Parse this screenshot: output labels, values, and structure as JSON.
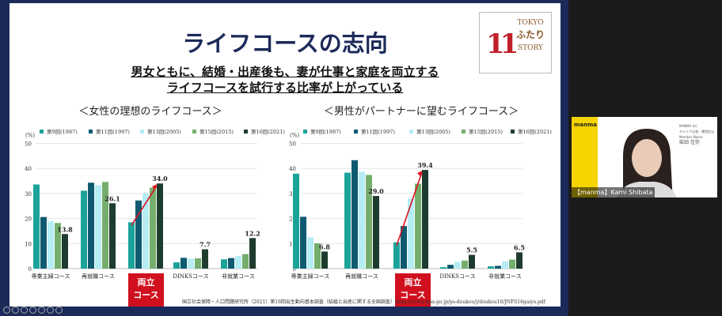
{
  "slide": {
    "title": "ライフコースの志向",
    "subtitle_line1": "男女ともに、結婚・出産後も、妻が仕事と家庭を両立する",
    "subtitle_line2": "ライフコースを試行する比率が上がっている",
    "logo_text": "TOKYO ふたり STORY",
    "highlight_label_line1": "両立",
    "highlight_label_line2": "コース",
    "source": "国立社会保障・人口問題研究所（2021）第16回出生動向基本調査（結婚と出産に関する全国調査）https://www.ipss.go.jp/ps-doukou/j/doukou16/JNFS16gaiyo.pdf"
  },
  "chart_data": [
    {
      "type": "bar",
      "title": "＜女性の理想のライフコース＞",
      "ylabel": "(%)",
      "ylim": [
        0,
        50
      ],
      "yticks": [
        0,
        10,
        20,
        30,
        40,
        50
      ],
      "grid": true,
      "legend": "top",
      "categories": [
        "専業主婦コース",
        "再就職コース",
        "両立コース",
        "DINKSコース",
        "非就業コース"
      ],
      "series": [
        {
          "name": "第9回(1987)",
          "color": "#1ba39a",
          "values": [
            33.6,
            31.1,
            18.5,
            2.5,
            3.7
          ]
        },
        {
          "name": "第11回(1997)",
          "color": "#0e5a70",
          "values": [
            20.6,
            34.3,
            27.2,
            4.3,
            4.2
          ]
        },
        {
          "name": "第13回(2005)",
          "color": "#b6ecf4",
          "values": [
            18.9,
            33.3,
            30.0,
            4.0,
            5.0
          ]
        },
        {
          "name": "第15回(2015)",
          "color": "#74ae6c",
          "values": [
            18.2,
            34.6,
            32.3,
            4.1,
            5.8
          ]
        },
        {
          "name": "第16回(2021)",
          "color": "#1e3c2e",
          "values": [
            13.8,
            26.1,
            34.0,
            7.7,
            12.2
          ]
        }
      ],
      "data_labels": [
        "13.8",
        "26.1",
        "34.0",
        "7.7",
        "12.2"
      ]
    },
    {
      "type": "bar",
      "title": "＜男性がパートナーに望むライフコース＞",
      "ylabel": "(%)",
      "ylim": [
        0,
        50
      ],
      "yticks": [
        0,
        10,
        20,
        30,
        40,
        50
      ],
      "grid": true,
      "legend": "top",
      "categories": [
        "専業主婦コース",
        "再就職コース",
        "両立コース",
        "DINKSコース",
        "非就業コース"
      ],
      "series": [
        {
          "name": "第9回(1987)",
          "color": "#1ba39a",
          "values": [
            37.9,
            38.3,
            10.5,
            0.6,
            0.9
          ]
        },
        {
          "name": "第11回(1997)",
          "color": "#0e5a70",
          "values": [
            20.7,
            43.3,
            17.0,
            1.5,
            1.1
          ]
        },
        {
          "name": "第13回(2005)",
          "color": "#b6ecf4",
          "values": [
            12.5,
            38.7,
            28.0,
            2.7,
            2.9
          ]
        },
        {
          "name": "第15回(2015)",
          "color": "#74ae6c",
          "values": [
            10.1,
            37.4,
            33.9,
            3.2,
            3.6
          ]
        },
        {
          "name": "第16回(2021)",
          "color": "#1e3c2e",
          "values": [
            6.8,
            29.0,
            39.4,
            5.5,
            6.5
          ]
        }
      ],
      "data_labels": [
        "6.8",
        "29.0",
        "39.4",
        "5.5",
        "6.5"
      ]
    }
  ],
  "video": {
    "logo": "manma",
    "participant_name": "【manma】Kami Shibata",
    "info_line1": "MANMA Inc.",
    "info_line2": "キャリア企画・運営担当",
    "info_line3": "Member Name",
    "info_line4": "柴田 佳弥"
  },
  "colors": {
    "frame": "#1c2a5a",
    "highlight": "#d0101e",
    "arrow": "#e01020"
  }
}
